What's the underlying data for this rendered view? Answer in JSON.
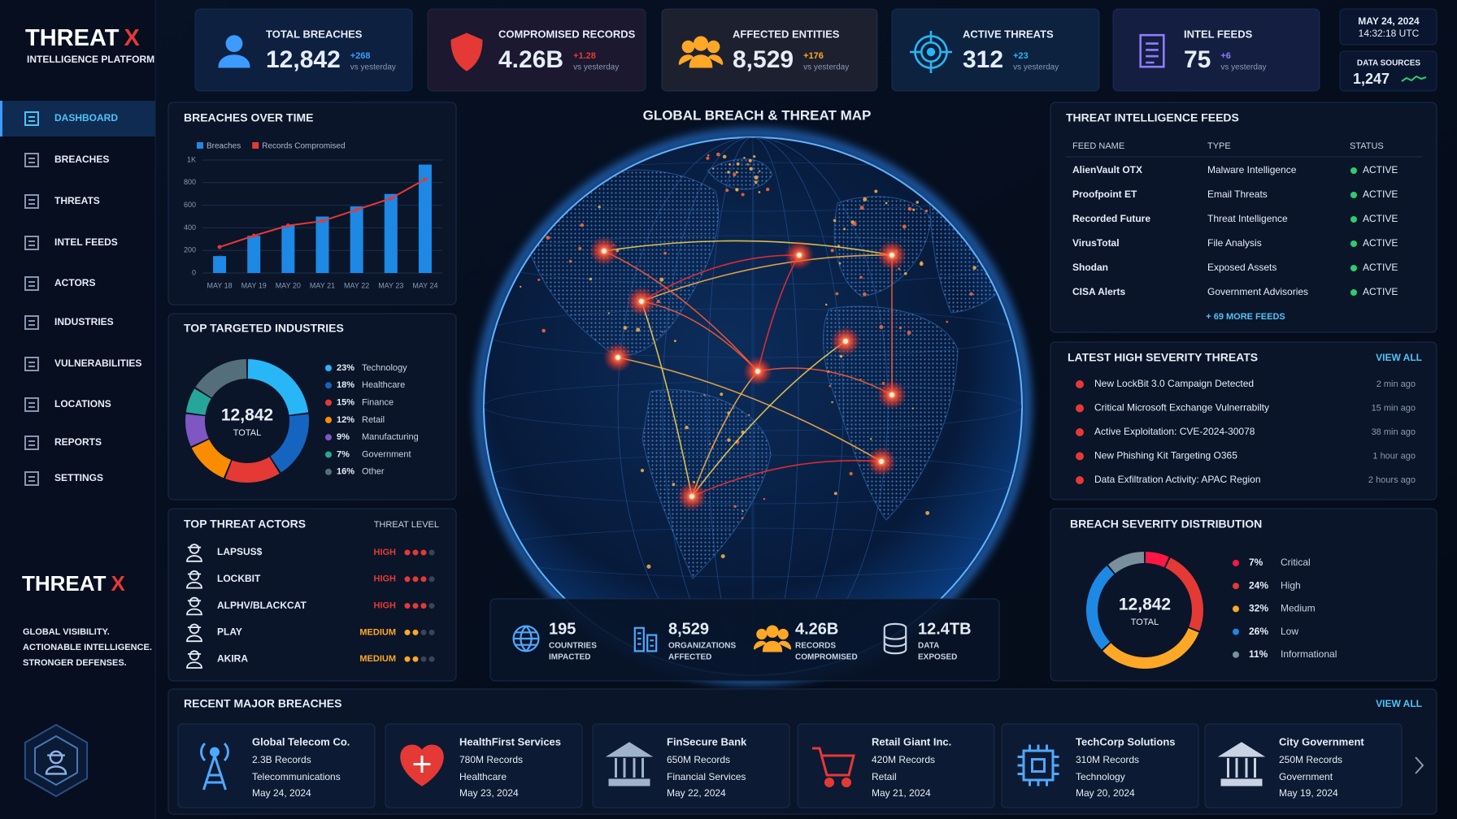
{
  "brand": {
    "name": "THREAT",
    "mark": "X",
    "tagline": "INTELLIGENCE PLATFORM"
  },
  "stats": [
    {
      "label": "TOTAL BREACHES",
      "value": "12,842",
      "delta": "+268",
      "note": "vs yesterday",
      "color": "#3d9bff"
    },
    {
      "label": "COMPROMISED RECORDS",
      "value": "4.26B",
      "delta": "+1.28",
      "note": "vs yesterday",
      "color": "#e53935"
    },
    {
      "label": "AFFECTED ENTITIES",
      "value": "8,529",
      "delta": "+176",
      "note": "vs yesterday",
      "color": "#ffa726"
    },
    {
      "label": "ACTIVE THREATS",
      "value": "312",
      "delta": "+23",
      "note": "vs yesterday",
      "color": "#29b6f6"
    },
    {
      "label": "INTEL FEEDS",
      "value": "75",
      "delta": "+6",
      "note": "vs yesterday",
      "color": "#8e7dff"
    }
  ],
  "clock": {
    "date": "MAY 24, 2024",
    "time": "14:32:18 UTC"
  },
  "data_sources": {
    "label": "DATA SOURCES",
    "value": "1,247"
  },
  "nav": {
    "items": [
      "DASHBOARD",
      "BREACHES",
      "THREATS",
      "INTEL FEEDS",
      "ACTORS",
      "INDUSTRIES",
      "VULNERABILITIES",
      "LOCATIONS",
      "REPORTS",
      "SETTINGS"
    ],
    "active": 0
  },
  "side_brand": {
    "name": "THREAT",
    "mark": "X",
    "slogan": [
      "GLOBAL VISIBILITY.",
      "ACTIONABLE INTELLIGENCE.",
      "STRONGER DEFENSES."
    ]
  },
  "breaches_over_time": {
    "type": "bar",
    "title": "BREACHES OVER TIME",
    "categories": [
      "MAY 18",
      "MAY 19",
      "MAY 20",
      "MAY 21",
      "MAY 22",
      "MAY 23",
      "MAY 24"
    ],
    "series": [
      {
        "name": "Breaches",
        "color": "#1e88e5",
        "type": "bar",
        "values": [
          150,
          330,
          420,
          500,
          590,
          700,
          960
        ]
      },
      {
        "name": "Records Compromised",
        "color": "#e53935",
        "type": "line",
        "values": [
          230,
          330,
          420,
          460,
          560,
          660,
          830
        ]
      }
    ],
    "ylim": [
      0,
      1000
    ],
    "yticks": [
      0,
      200,
      400,
      600,
      800,
      {
        "value": 1000,
        "label": "1K"
      }
    ],
    "grid": true
  },
  "top_industries": {
    "type": "donut",
    "title": "TOP TARGETED INDUSTRIES",
    "center_value": "12,842",
    "center_label": "TOTAL",
    "categories": [
      "Technology",
      "Healthcare",
      "Finance",
      "Retail",
      "Manufacturing",
      "Government",
      "Other"
    ],
    "values": [
      23,
      18,
      15,
      12,
      9,
      7,
      16
    ],
    "value_labels": [
      "23%",
      "18%",
      "15%",
      "12%",
      "9%",
      "7%",
      "16%"
    ],
    "colors": [
      "#29b6f6",
      "#1565c0",
      "#e53935",
      "#fb8c00",
      "#7e57c2",
      "#26a69a",
      "#546e7a"
    ]
  },
  "threat_actors": {
    "title": "TOP THREAT ACTORS",
    "level_header": "THREAT LEVEL",
    "scale": 4,
    "rows": [
      {
        "name": "LAPSUS$",
        "level": "HIGH",
        "rating": 3,
        "color": "#e53935"
      },
      {
        "name": "LOCKBIT",
        "level": "HIGH",
        "rating": 3,
        "color": "#e53935"
      },
      {
        "name": "ALPHV/BLACKCAT",
        "level": "HIGH",
        "rating": 3,
        "color": "#e53935"
      },
      {
        "name": "PLAY",
        "level": "MEDIUM",
        "rating": 2,
        "color": "#ffa726"
      },
      {
        "name": "AKIRA",
        "level": "MEDIUM",
        "rating": 2,
        "color": "#ffa726"
      }
    ]
  },
  "map": {
    "title": "GLOBAL BREACH & THREAT MAP",
    "stats": [
      {
        "value": "195",
        "label": [
          "COUNTRIES",
          "IMPACTED"
        ]
      },
      {
        "value": "8,529",
        "label": [
          "ORGANIZATIONS",
          "AFFECTED"
        ]
      },
      {
        "value": "4.26B",
        "label": [
          "RECORDS",
          "COMPROMISED"
        ]
      },
      {
        "value": "12.4TB",
        "label": [
          "DATA",
          "EXPOSED"
        ]
      }
    ]
  },
  "feeds": {
    "title": "THREAT INTELLIGENCE FEEDS",
    "columns": [
      "FEED NAME",
      "TYPE",
      "STATUS"
    ],
    "rows": [
      [
        "AlienVault OTX",
        "Malware Intelligence",
        "ACTIVE"
      ],
      [
        "Proofpoint ET",
        "Email Threats",
        "ACTIVE"
      ],
      [
        "Recorded Future",
        "Threat Intelligence",
        "ACTIVE"
      ],
      [
        "VirusTotal",
        "File Analysis",
        "ACTIVE"
      ],
      [
        "Shodan",
        "Exposed Assets",
        "ACTIVE"
      ],
      [
        "CISA Alerts",
        "Government Advisories",
        "ACTIVE"
      ]
    ],
    "more": "+ 69 MORE FEEDS"
  },
  "latest_threats": {
    "title": "LATEST HIGH SEVERITY THREATS",
    "action": "VIEW ALL",
    "items": [
      {
        "text": "New LockBit 3.0 Campaign Detected",
        "time": "2 min ago"
      },
      {
        "text": "Critical Microsoft Exchange Vulnerrabilty",
        "time": "15 min ago"
      },
      {
        "text": "Active Exploitation: CVE-2024-30078",
        "time": "38 min ago"
      },
      {
        "text": "New Phishing Kit Targeting O365",
        "time": "1 hour ago"
      },
      {
        "text": "Data Exfiltration Activity: APAC Region",
        "time": "2 hours ago"
      }
    ]
  },
  "severity": {
    "type": "donut",
    "title": "BREACH SEVERITY DISTRIBUTION",
    "center_value": "12,842",
    "center_label": "TOTAL",
    "categories": [
      "Critical",
      "High",
      "Medium",
      "Low",
      "Informational"
    ],
    "values": [
      7,
      24,
      32,
      26,
      11
    ],
    "value_labels": [
      "7%",
      "24%",
      "32%",
      "26%",
      "11%"
    ],
    "colors": [
      "#ff1744",
      "#e53935",
      "#ffa726",
      "#1e88e5",
      "#78909c"
    ]
  },
  "recent_breaches": {
    "title": "RECENT MAJOR BREACHES",
    "action": "VIEW ALL",
    "items": [
      {
        "name": "Global Telecom Co.",
        "records": "2.3B Records",
        "industry": "Telecommunications",
        "date": "May 24, 2024"
      },
      {
        "name": "HealthFirst Services",
        "records": "780M Records",
        "industry": "Healthcare",
        "date": "May 23, 2024"
      },
      {
        "name": "FinSecure Bank",
        "records": "650M Records",
        "industry": "Financial Services",
        "date": "May 22, 2024"
      },
      {
        "name": "Retail Giant Inc.",
        "records": "420M Records",
        "industry": "Retail",
        "date": "May 21, 2024"
      },
      {
        "name": "TechCorp Solutions",
        "records": "310M Records",
        "industry": "Technology",
        "date": "May 20, 2024"
      },
      {
        "name": "City Government",
        "records": "250M Records",
        "industry": "Government",
        "date": "May 19, 2024"
      }
    ]
  }
}
